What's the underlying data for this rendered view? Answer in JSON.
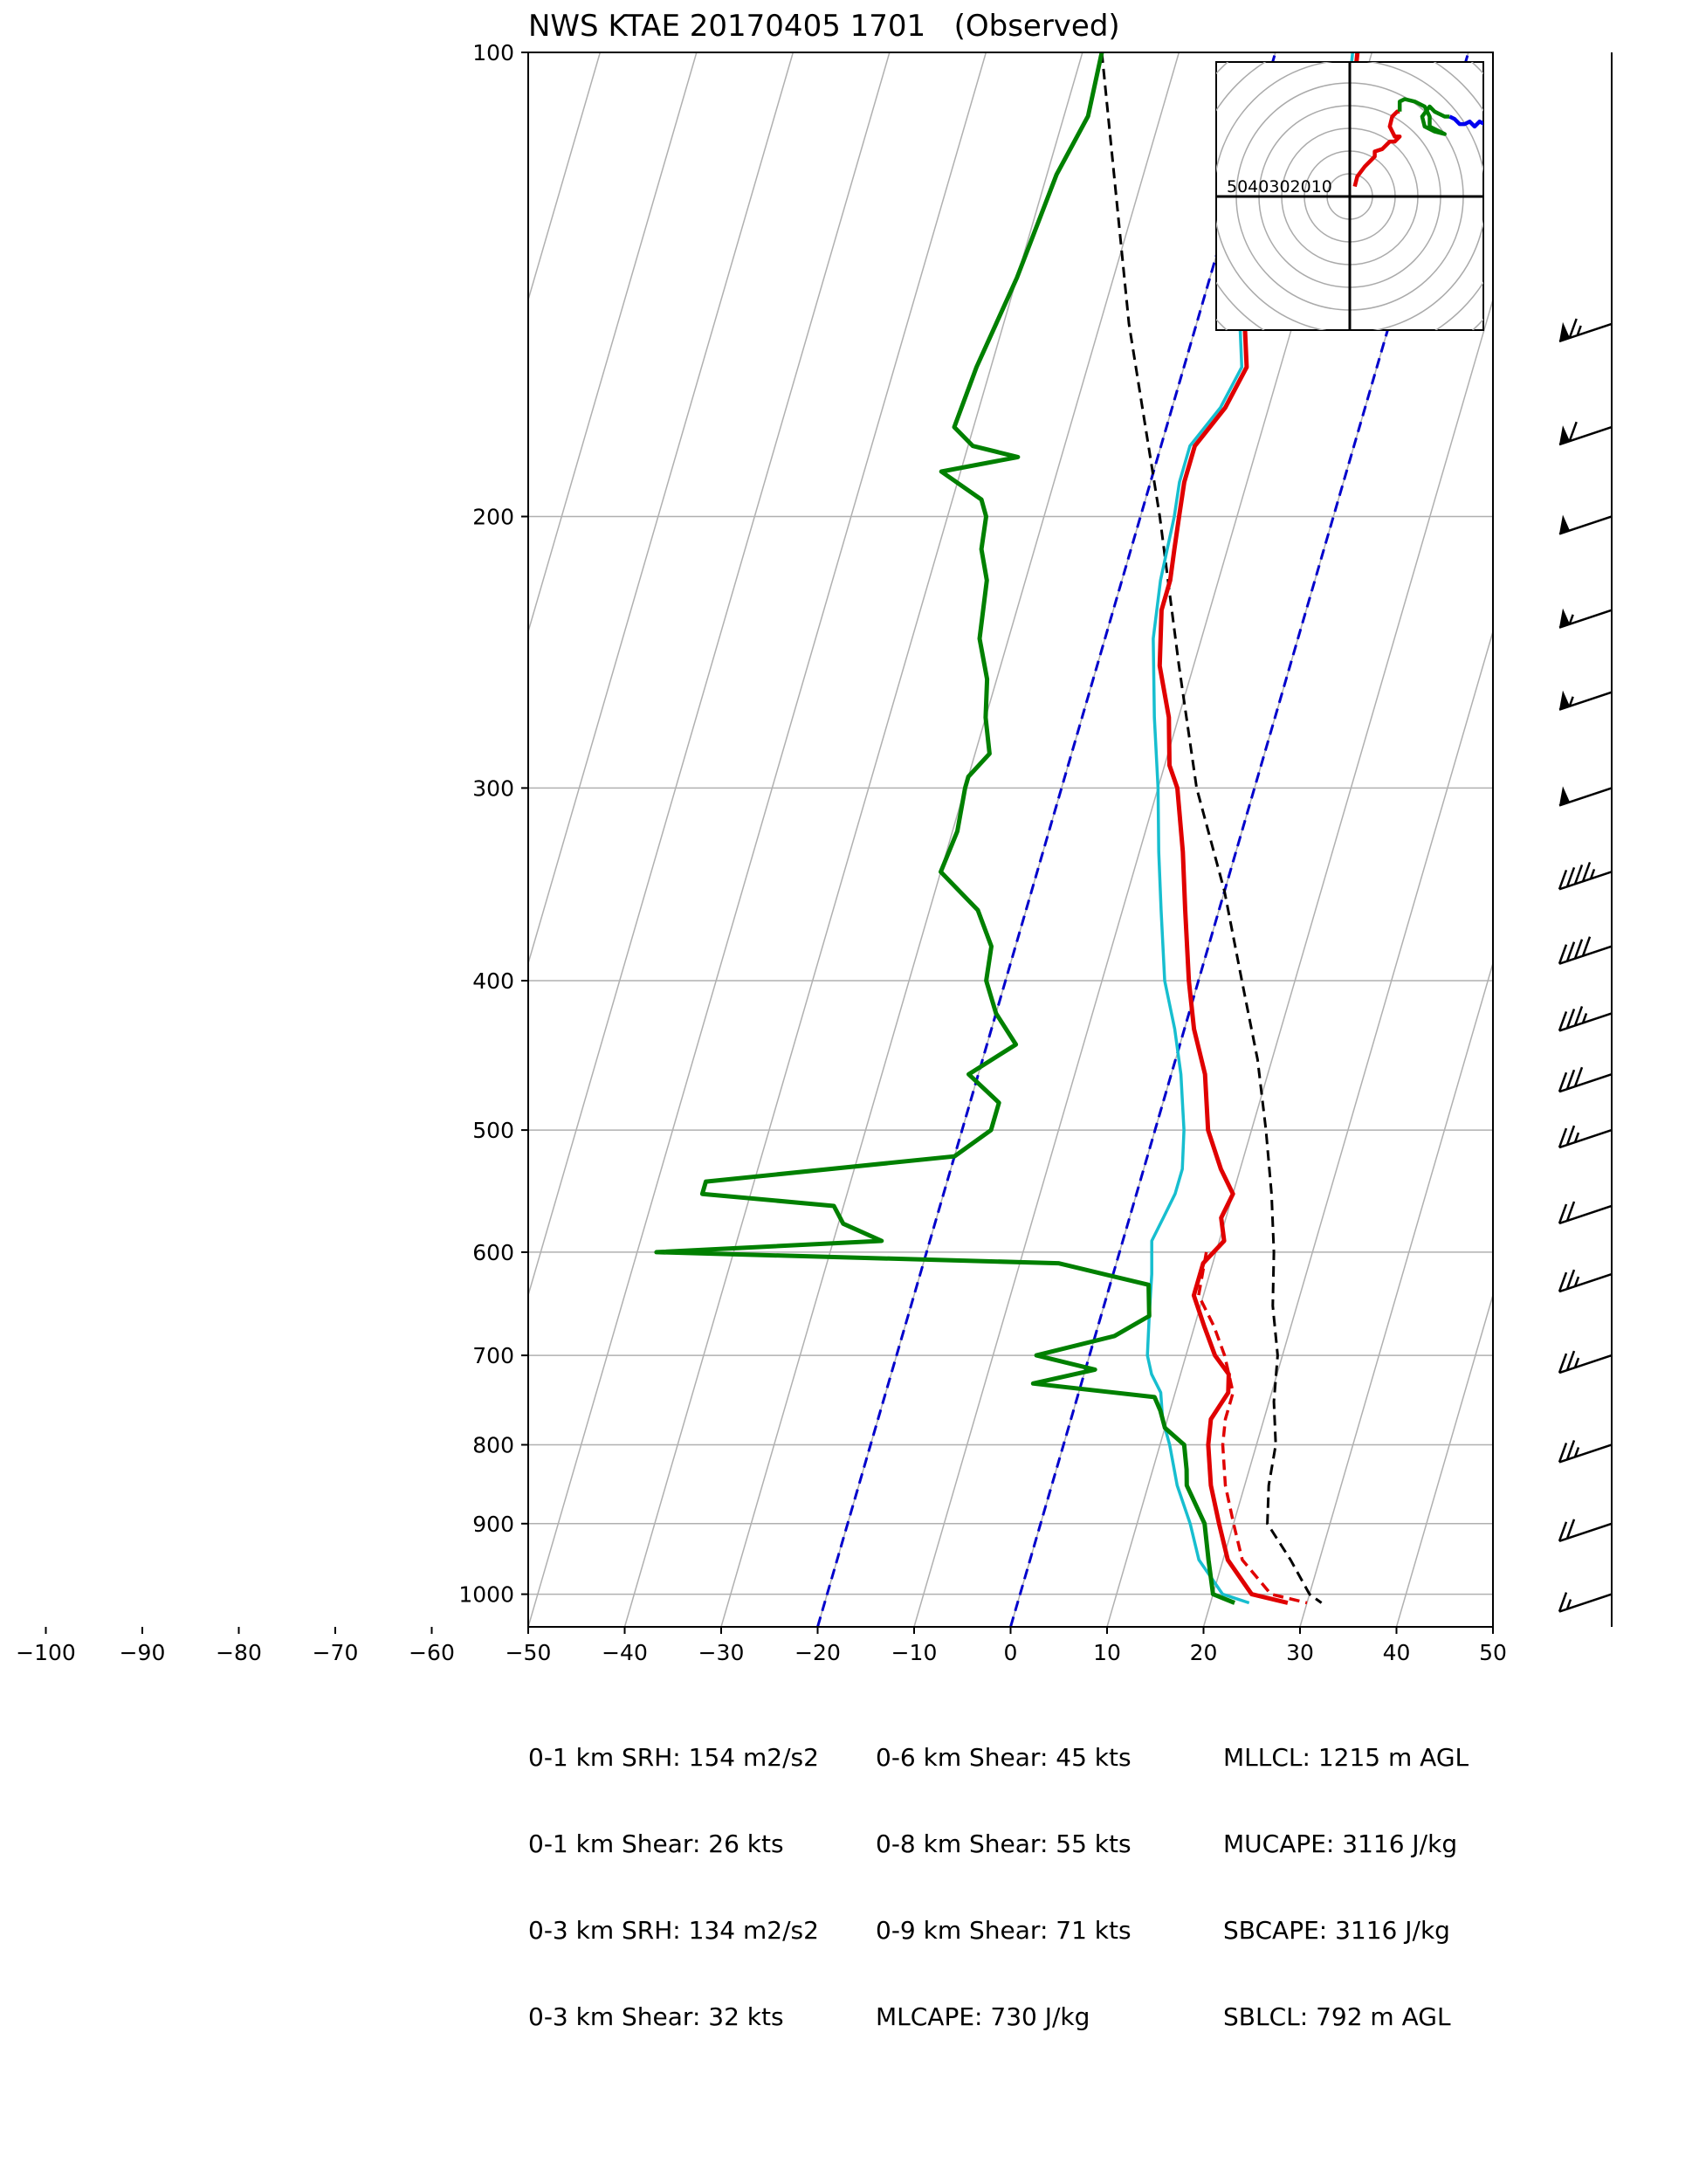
{
  "title": "NWS KTAE 20170405 1701   (Observed)",
  "colors": {
    "temperature": "#e00000",
    "dewpoint": "#008000",
    "wetbulb": "#17becf",
    "parcel": "#000000",
    "isotherm_special": "#0000cc",
    "hodo_low": "#e00000",
    "hodo_mid": "#008000",
    "hodo_high": "#0000ee",
    "grid": "#b0b0b0"
  },
  "params": {
    "col1": [
      "0-1 km SRH: 154 m2/s2",
      "0-1 km Shear: 26 kts",
      "0-3 km SRH: 134 m2/s2",
      "0-3 km Shear: 32 kts"
    ],
    "col2": [
      "0-6 km Shear: 45 kts",
      "0-8 km Shear: 55 kts",
      "0-9 km Shear: 71 kts",
      "MLCAPE: 730 J/kg"
    ],
    "col3": [
      "MLLCL: 1215 m AGL",
      "MUCAPE: 3116 J/kg",
      "SBCAPE: 3116 J/kg",
      "SBLCL: 792 m AGL"
    ]
  },
  "chart_data": {
    "type": "skew-t",
    "p_ticks": [
      100,
      200,
      300,
      400,
      500,
      600,
      700,
      800,
      900,
      1000
    ],
    "x_ticks": [
      -100,
      -90,
      -80,
      -70,
      -60,
      -50,
      -40,
      -30,
      -20,
      -10,
      0,
      10,
      20,
      30,
      40,
      50
    ],
    "xlim": [
      -50,
      50
    ],
    "plim": [
      1050,
      100
    ],
    "y_scale": "log",
    "grid": true,
    "special_isotherms": [
      -20,
      0
    ],
    "temperature": [
      [
        100,
        -11.5
      ],
      [
        108,
        -10.5
      ],
      [
        115,
        -12
      ],
      [
        125,
        -14.5
      ],
      [
        140,
        -15
      ],
      [
        150,
        -15
      ],
      [
        160,
        -13.5
      ],
      [
        170,
        -14.5
      ],
      [
        180,
        -16.5
      ],
      [
        190,
        -16.5
      ],
      [
        200,
        -16
      ],
      [
        210,
        -15.5
      ],
      [
        220,
        -15
      ],
      [
        230,
        -15
      ],
      [
        250,
        -13.5
      ],
      [
        270,
        -11
      ],
      [
        290,
        -9.5
      ],
      [
        300,
        -8
      ],
      [
        330,
        -5.5
      ],
      [
        360,
        -3.5
      ],
      [
        400,
        -1
      ],
      [
        430,
        1
      ],
      [
        460,
        3.5
      ],
      [
        500,
        5.5
      ],
      [
        530,
        8
      ],
      [
        550,
        10
      ],
      [
        570,
        9.5
      ],
      [
        590,
        10.5
      ],
      [
        610,
        9
      ],
      [
        640,
        9
      ],
      [
        670,
        11
      ],
      [
        700,
        13
      ],
      [
        720,
        15
      ],
      [
        740,
        15.5
      ],
      [
        770,
        14.5
      ],
      [
        800,
        15
      ],
      [
        850,
        16.5
      ],
      [
        900,
        18.5
      ],
      [
        950,
        20.5
      ],
      [
        1000,
        24
      ],
      [
        1013,
        28
      ]
    ],
    "temperature_virtual": [
      [
        600,
        9
      ],
      [
        640,
        9.5
      ],
      [
        670,
        12
      ],
      [
        700,
        14
      ],
      [
        740,
        16
      ],
      [
        770,
        16
      ],
      [
        800,
        16.5
      ],
      [
        850,
        18
      ],
      [
        900,
        20
      ],
      [
        950,
        22
      ],
      [
        1000,
        26
      ],
      [
        1013,
        30
      ]
    ],
    "wetbulb": [
      [
        100,
        -12
      ],
      [
        108,
        -11
      ],
      [
        115,
        -13
      ],
      [
        125,
        -15
      ],
      [
        140,
        -15.5
      ],
      [
        150,
        -15.5
      ],
      [
        160,
        -14
      ],
      [
        170,
        -15
      ],
      [
        180,
        -17
      ],
      [
        190,
        -17
      ],
      [
        200,
        -16.5
      ],
      [
        220,
        -16
      ],
      [
        240,
        -15
      ],
      [
        270,
        -12.5
      ],
      [
        300,
        -10
      ],
      [
        330,
        -8
      ],
      [
        360,
        -6
      ],
      [
        400,
        -3.5
      ],
      [
        430,
        -1
      ],
      [
        460,
        1
      ],
      [
        500,
        3
      ],
      [
        530,
        4
      ],
      [
        550,
        4
      ],
      [
        570,
        3.5
      ],
      [
        590,
        3
      ],
      [
        620,
        4
      ],
      [
        660,
        5
      ],
      [
        700,
        6
      ],
      [
        720,
        7
      ],
      [
        740,
        8.5
      ],
      [
        770,
        9.5
      ],
      [
        800,
        11
      ],
      [
        850,
        13
      ],
      [
        900,
        15.5
      ],
      [
        950,
        17.5
      ],
      [
        1000,
        21
      ],
      [
        1013,
        24
      ]
    ],
    "dewpoint": [
      [
        100,
        -38
      ],
      [
        110,
        -37.5
      ],
      [
        120,
        -39
      ],
      [
        140,
        -40
      ],
      [
        160,
        -41.5
      ],
      [
        175,
        -42
      ],
      [
        180,
        -39.5
      ],
      [
        183,
        -34.5
      ],
      [
        187,
        -42
      ],
      [
        195,
        -37
      ],
      [
        200,
        -36
      ],
      [
        210,
        -35.5
      ],
      [
        220,
        -34
      ],
      [
        240,
        -33
      ],
      [
        255,
        -31
      ],
      [
        270,
        -30
      ],
      [
        285,
        -28.5
      ],
      [
        295,
        -30
      ],
      [
        300,
        -30
      ],
      [
        320,
        -29.5
      ],
      [
        340,
        -30
      ],
      [
        360,
        -25
      ],
      [
        380,
        -22.5
      ],
      [
        400,
        -22
      ],
      [
        420,
        -20
      ],
      [
        440,
        -17
      ],
      [
        460,
        -21
      ],
      [
        480,
        -17
      ],
      [
        500,
        -17
      ],
      [
        520,
        -20
      ],
      [
        540,
        -45
      ],
      [
        550,
        -45
      ],
      [
        560,
        -31
      ],
      [
        575,
        -29.5
      ],
      [
        590,
        -25
      ],
      [
        600,
        -48
      ],
      [
        610,
        -6
      ],
      [
        630,
        4
      ],
      [
        660,
        5
      ],
      [
        680,
        2
      ],
      [
        700,
        -5.5
      ],
      [
        715,
        1
      ],
      [
        730,
        -5
      ],
      [
        745,
        8
      ],
      [
        760,
        9
      ],
      [
        780,
        10
      ],
      [
        800,
        12.5
      ],
      [
        830,
        13.5
      ],
      [
        850,
        14
      ],
      [
        900,
        17
      ],
      [
        950,
        18.5
      ],
      [
        1000,
        20
      ],
      [
        1013,
        22.5
      ]
    ],
    "parcel": [
      [
        100,
        -38
      ],
      [
        150,
        -27
      ],
      [
        200,
        -18
      ],
      [
        250,
        -11.5
      ],
      [
        300,
        -6
      ],
      [
        350,
        0
      ],
      [
        400,
        4.5
      ],
      [
        450,
        8.5
      ],
      [
        500,
        11.5
      ],
      [
        550,
        14
      ],
      [
        600,
        16
      ],
      [
        650,
        17.5
      ],
      [
        700,
        19.5
      ],
      [
        750,
        20.5
      ],
      [
        800,
        22
      ],
      [
        850,
        22.5
      ],
      [
        900,
        23.5
      ],
      [
        950,
        27
      ],
      [
        1000,
        30
      ],
      [
        1013,
        31.5
      ]
    ],
    "hodograph": {
      "rings": [
        10,
        20,
        30,
        40,
        50
      ],
      "ring_labels": [
        "50",
        "40",
        "30",
        "20",
        "10"
      ],
      "segments": [
        {
          "color": "#e00000",
          "u": [
            1,
            1.5,
            3,
            4,
            5,
            5,
            6.5,
            8,
            9,
            10,
            9,
            8,
            8.5,
            9.5,
            10
          ],
          "v": [
            2,
            4,
            6,
            7,
            8,
            9,
            9.5,
            11,
            11,
            12,
            12,
            14,
            16,
            17,
            17
          ]
        },
        {
          "color": "#008000",
          "u": [
            10,
            10,
            11,
            13,
            15,
            16,
            16,
            17,
            18,
            19,
            17,
            15,
            14.5,
            16,
            17,
            19,
            20
          ],
          "v": [
            17,
            19,
            19.5,
            19,
            18,
            16,
            14,
            13.5,
            13,
            12.5,
            13,
            14,
            16,
            18,
            17,
            16,
            16
          ]
        },
        {
          "color": "#0000ee",
          "u": [
            20,
            21,
            22,
            23,
            24,
            25,
            26,
            27,
            28
          ],
          "v": [
            16,
            15.5,
            14.5,
            14.5,
            15,
            14,
            15,
            14.5,
            14.5
          ]
        }
      ]
    },
    "wind_barbs": [
      [
        150,
        65
      ],
      [
        175,
        60
      ],
      [
        200,
        50
      ],
      [
        230,
        55
      ],
      [
        260,
        55
      ],
      [
        300,
        50
      ],
      [
        340,
        45
      ],
      [
        380,
        40
      ],
      [
        420,
        35
      ],
      [
        460,
        30
      ],
      [
        500,
        25
      ],
      [
        560,
        20
      ],
      [
        620,
        25
      ],
      [
        700,
        25
      ],
      [
        800,
        25
      ],
      [
        900,
        20
      ],
      [
        1000,
        15
      ]
    ]
  }
}
